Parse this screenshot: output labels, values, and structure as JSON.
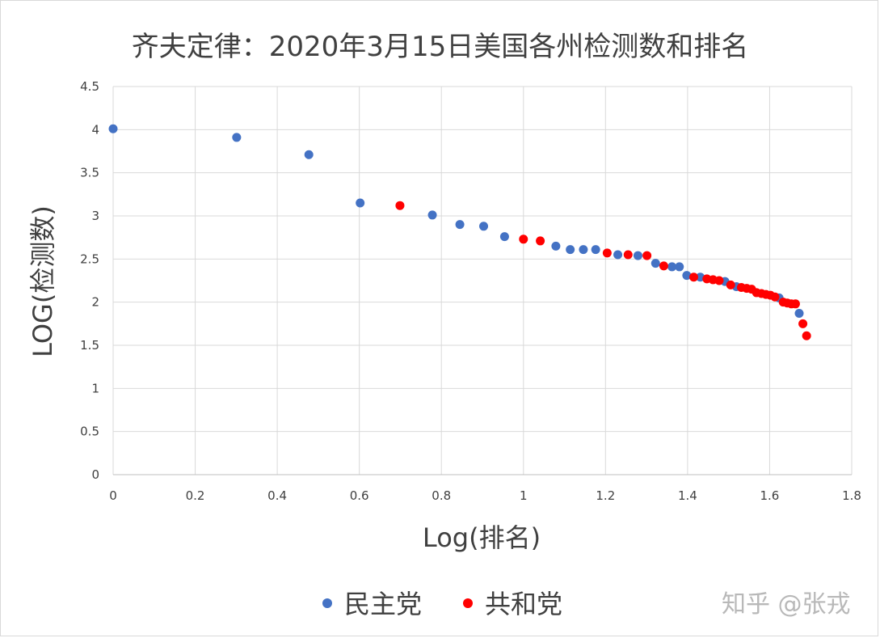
{
  "chart_data": {
    "type": "scatter",
    "title": "齐夫定律：2020年3月15日美国各州检测数和排名",
    "xlabel": "Log(排名)",
    "ylabel": "LOG(检测数)",
    "xlim": [
      0,
      1.8
    ],
    "ylim": [
      0,
      4.5
    ],
    "x_ticks": [
      "0",
      "0.2",
      "0.4",
      "0.6",
      "0.8",
      "1",
      "1.2",
      "1.4",
      "1.6",
      "1.8"
    ],
    "y_ticks": [
      "0",
      "0.5",
      "1",
      "1.5",
      "2",
      "2.5",
      "3",
      "3.5",
      "4",
      "4.5"
    ],
    "grid": true,
    "legend_position": "bottom",
    "series": [
      {
        "name": "民主党",
        "color": "#4472c4",
        "points": [
          [
            0.0,
            4.01
          ],
          [
            0.301,
            3.91
          ],
          [
            0.477,
            3.71
          ],
          [
            0.602,
            3.15
          ],
          [
            0.778,
            3.01
          ],
          [
            0.845,
            2.9
          ],
          [
            0.903,
            2.88
          ],
          [
            0.954,
            2.76
          ],
          [
            1.079,
            2.65
          ],
          [
            1.114,
            2.61
          ],
          [
            1.146,
            2.61
          ],
          [
            1.176,
            2.61
          ],
          [
            1.23,
            2.55
          ],
          [
            1.279,
            2.54
          ],
          [
            1.322,
            2.45
          ],
          [
            1.362,
            2.41
          ],
          [
            1.38,
            2.41
          ],
          [
            1.398,
            2.31
          ],
          [
            1.431,
            2.29
          ],
          [
            1.491,
            2.24
          ],
          [
            1.519,
            2.18
          ],
          [
            1.623,
            2.05
          ],
          [
            1.672,
            1.87
          ]
        ]
      },
      {
        "name": "共和党",
        "color": "#ff0000",
        "points": [
          [
            0.699,
            3.12
          ],
          [
            1.0,
            2.73
          ],
          [
            1.041,
            2.71
          ],
          [
            1.204,
            2.57
          ],
          [
            1.255,
            2.55
          ],
          [
            1.301,
            2.54
          ],
          [
            1.342,
            2.42
          ],
          [
            1.415,
            2.29
          ],
          [
            1.447,
            2.27
          ],
          [
            1.462,
            2.26
          ],
          [
            1.477,
            2.25
          ],
          [
            1.505,
            2.2
          ],
          [
            1.531,
            2.17
          ],
          [
            1.544,
            2.16
          ],
          [
            1.556,
            2.15
          ],
          [
            1.568,
            2.11
          ],
          [
            1.58,
            2.1
          ],
          [
            1.591,
            2.09
          ],
          [
            1.602,
            2.08
          ],
          [
            1.613,
            2.06
          ],
          [
            1.633,
            2.0
          ],
          [
            1.643,
            1.99
          ],
          [
            1.653,
            1.98
          ],
          [
            1.663,
            1.98
          ],
          [
            1.681,
            1.75
          ],
          [
            1.69,
            1.61
          ]
        ]
      }
    ]
  },
  "watermark": "知乎 @张戎"
}
